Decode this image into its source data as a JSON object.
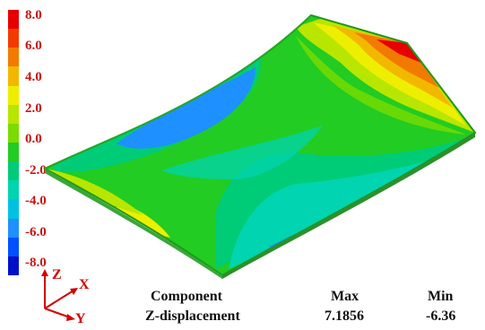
{
  "legend": {
    "ticks": [
      "8.0",
      "6.0",
      "4.0",
      "2.0",
      "0.0",
      "-2.0",
      "-4.0",
      "-6.0",
      "-8.0"
    ],
    "colors": [
      "#e60000",
      "#f23b00",
      "#f27a00",
      "#f2b800",
      "#eeee00",
      "#b8e600",
      "#7bdc00",
      "#22cc22",
      "#00cc77",
      "#00d4b0",
      "#00c2e0",
      "#1e90ff",
      "#0050ff",
      "#0010c8"
    ]
  },
  "axes": {
    "z_label": "Z",
    "x_label": "X",
    "y_label": "Y"
  },
  "results": {
    "component_header": "Component",
    "max_header": "Max",
    "min_header": "Min",
    "component_value": "Z-displacement",
    "max_value": "7.1856",
    "min_value": "-6.36"
  }
}
